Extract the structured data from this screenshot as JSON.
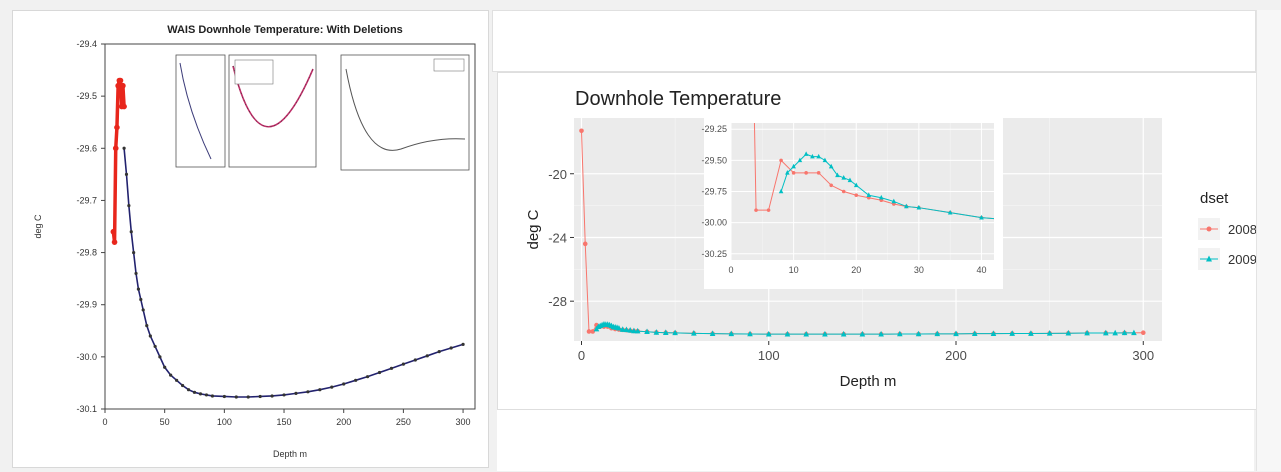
{
  "chart_data": [
    {
      "type": "line",
      "title": "WAIS Downhole Temperature: With Deletions",
      "xlabel": "Depth m",
      "ylabel": "deg C",
      "xlim": [
        0,
        310
      ],
      "ylim": [
        -30.1,
        -29.4
      ],
      "xticks": [
        "0",
        "50",
        "100",
        "150",
        "200",
        "250",
        "300"
      ],
      "yticks": [
        "-29.4",
        "-29.5",
        "-29.6",
        "-29.7",
        "-29.8",
        "-29.9",
        "-30.0",
        "-30.1"
      ],
      "grid": false,
      "colors": {
        "deleted": "#e8261c",
        "model": "#22226e",
        "points": "#333333"
      },
      "series": [
        {
          "x": [
            7,
            8,
            9,
            10,
            11,
            12,
            13,
            14,
            15,
            16
          ],
          "y": [
            -29.76,
            -29.78,
            -29.6,
            -29.56,
            -29.48,
            -29.47,
            -29.47,
            -29.52,
            -29.48,
            -29.52
          ]
        },
        {
          "x": [
            16,
            18,
            20,
            22,
            24,
            26,
            28,
            30,
            32,
            35,
            38,
            42,
            46,
            50,
            55,
            60,
            65,
            70,
            75,
            80,
            85,
            90,
            100,
            110,
            120,
            130,
            140,
            150,
            160,
            170,
            180,
            190,
            200,
            210,
            220,
            230,
            240,
            250,
            260,
            270,
            280,
            290,
            300
          ],
          "y": [
            -29.6,
            -29.65,
            -29.71,
            -29.76,
            -29.8,
            -29.84,
            -29.87,
            -29.89,
            -29.91,
            -29.94,
            -29.96,
            -29.98,
            -30.0,
            -30.02,
            -30.035,
            -30.045,
            -30.055,
            -30.063,
            -30.068,
            -30.071,
            -30.073,
            -30.075,
            -30.076,
            -30.077,
            -30.077,
            -30.076,
            -30.075,
            -30.073,
            -30.07,
            -30.067,
            -30.063,
            -30.058,
            -30.052,
            -30.045,
            -30.038,
            -30.03,
            -30.022,
            -30.014,
            -30.006,
            -29.998,
            -29.99,
            -29.983,
            -29.976
          ]
        }
      ]
    },
    {
      "type": "line",
      "title": "Downhole Temperature",
      "xlabel": "Depth m",
      "ylabel": "deg C",
      "xlim": [
        -4,
        310
      ],
      "ylim": [
        -30.5,
        -16.5
      ],
      "xticks": [
        "0",
        "100",
        "200",
        "300"
      ],
      "yticks": [
        "-20",
        "-24",
        "-28"
      ],
      "grid": true,
      "legend_position": "right",
      "legend_title": "dset",
      "series": [
        {
          "name": "2008",
          "color": "#F8766D",
          "x": [
            0,
            2,
            4,
            6,
            8,
            10,
            12,
            14,
            16,
            18,
            20,
            22,
            24,
            26,
            28,
            30,
            35,
            40,
            45,
            50,
            60,
            70,
            80,
            90,
            100,
            110,
            120,
            130,
            140,
            150,
            160,
            170,
            180,
            190,
            200,
            210,
            220,
            230,
            240,
            250,
            260,
            270,
            280,
            290,
            300
          ],
          "y": [
            -17.3,
            -24.4,
            -29.9,
            -29.9,
            -29.5,
            -29.6,
            -29.6,
            -29.6,
            -29.7,
            -29.75,
            -29.78,
            -29.8,
            -29.82,
            -29.85,
            -29.87,
            -29.88,
            -29.92,
            -29.96,
            -29.98,
            -29.99,
            -30.02,
            -30.04,
            -30.05,
            -30.06,
            -30.07,
            -30.07,
            -30.07,
            -30.07,
            -30.07,
            -30.07,
            -30.07,
            -30.06,
            -30.06,
            -30.05,
            -30.05,
            -30.04,
            -30.04,
            -30.03,
            -30.03,
            -30.02,
            -30.01,
            -30.0,
            -30.0,
            -29.99,
            -29.98
          ]
        },
        {
          "name": "2009",
          "color": "#00BFC4",
          "x": [
            8,
            9,
            10,
            11,
            12,
            13,
            14,
            15,
            16,
            17,
            18,
            19,
            20,
            22,
            24,
            26,
            28,
            30,
            35,
            40,
            45,
            50,
            60,
            70,
            80,
            90,
            100,
            110,
            120,
            130,
            140,
            150,
            160,
            170,
            180,
            190,
            200,
            210,
            220,
            230,
            240,
            250,
            260,
            270,
            280,
            285,
            290,
            295
          ],
          "y": [
            -29.75,
            -29.6,
            -29.55,
            -29.5,
            -29.45,
            -29.47,
            -29.47,
            -29.5,
            -29.55,
            -29.62,
            -29.64,
            -29.66,
            -29.7,
            -29.78,
            -29.8,
            -29.83,
            -29.87,
            -29.88,
            -29.92,
            -29.96,
            -29.98,
            -29.99,
            -30.02,
            -30.04,
            -30.05,
            -30.06,
            -30.07,
            -30.07,
            -30.07,
            -30.07,
            -30.07,
            -30.07,
            -30.07,
            -30.06,
            -30.06,
            -30.05,
            -30.05,
            -30.04,
            -30.04,
            -30.03,
            -30.03,
            -30.02,
            -30.01,
            -30.0,
            -30.0,
            -30.0,
            -29.99,
            -29.99
          ]
        }
      ],
      "inset": {
        "xlim": [
          0,
          42
        ],
        "ylim": [
          -30.3,
          -29.2
        ],
        "xticks": [
          "0",
          "10",
          "20",
          "30",
          "40"
        ],
        "yticks": [
          "-29.25",
          "-29.50",
          "-29.75",
          "-30.00",
          "-30.25"
        ]
      }
    }
  ]
}
